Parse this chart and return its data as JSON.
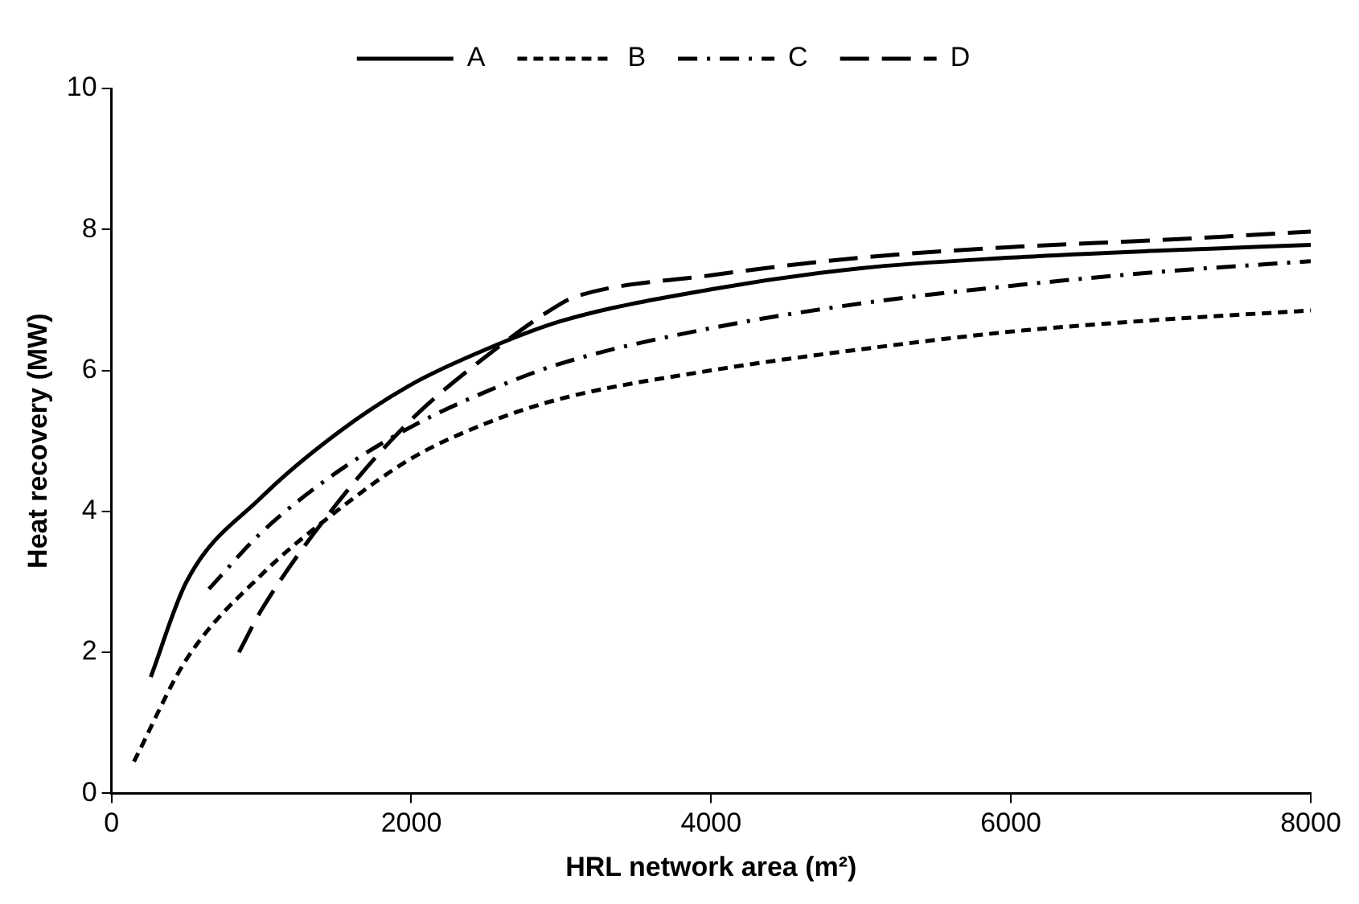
{
  "chart_data": {
    "type": "line",
    "xlabel": "HRL network area (m²)",
    "ylabel": "Heat recovery (MW)",
    "xlim": [
      0,
      8000
    ],
    "xticks": [
      0,
      2000,
      4000,
      6000,
      8000
    ],
    "ylim": [
      0,
      10
    ],
    "yticks": [
      0,
      2,
      4,
      6,
      8,
      10
    ],
    "grid": false,
    "legend": "top",
    "marker": "none",
    "series": [
      {
        "name": "A",
        "color": "#000000",
        "line_style": "solid",
        "x": [
          262,
          500,
          1000,
          1500,
          2000,
          2500,
          3000,
          4000,
          5000,
          6000,
          7000,
          8000
        ],
        "values": [
          1.65,
          3.0,
          4.2,
          5.1,
          5.8,
          6.3,
          6.7,
          7.15,
          7.45,
          7.6,
          7.7,
          7.78
        ]
      },
      {
        "name": "B",
        "color": "#000000",
        "line_style": "dotted",
        "x": [
          150,
          500,
          1000,
          1500,
          2000,
          2500,
          3000,
          4000,
          5000,
          6000,
          7000,
          8000
        ],
        "values": [
          0.45,
          1.9,
          3.1,
          4.0,
          4.75,
          5.25,
          5.6,
          6.0,
          6.3,
          6.55,
          6.72,
          6.85
        ]
      },
      {
        "name": "C",
        "color": "#000000",
        "line_style": "dashdot",
        "x": [
          650,
          1000,
          1500,
          2000,
          2500,
          3000,
          4000,
          5000,
          6000,
          7000,
          8000
        ],
        "values": [
          2.9,
          3.7,
          4.55,
          5.2,
          5.7,
          6.1,
          6.6,
          6.95,
          7.2,
          7.4,
          7.55
        ]
      },
      {
        "name": "D",
        "color": "#000000",
        "line_style": "dashed",
        "x": [
          850,
          1000,
          1500,
          2000,
          2500,
          3000,
          3100,
          4000,
          5000,
          6000,
          7000,
          8000
        ],
        "values": [
          2.0,
          2.6,
          4.1,
          5.3,
          6.2,
          6.95,
          7.05,
          7.35,
          7.6,
          7.75,
          7.85,
          7.97
        ]
      }
    ]
  }
}
